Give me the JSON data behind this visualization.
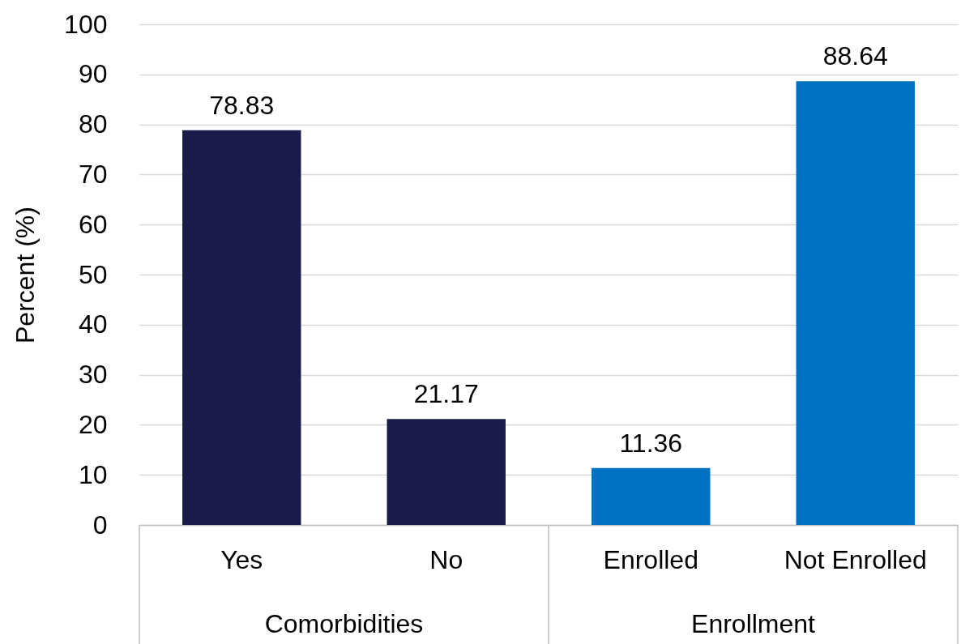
{
  "chart_data": {
    "type": "bar",
    "ylabel": "Percent (%)",
    "categories": [
      "Yes",
      "No",
      "Enrolled",
      "Not Enrolled"
    ],
    "values": [
      78.83,
      21.17,
      11.36,
      88.64
    ],
    "colors": [
      "#1b1b4b",
      "#1b1b4b",
      "#0070c0",
      "#0070c0"
    ],
    "annotations": [
      "Comorbidities",
      "Enrollment"
    ],
    "ylim": [
      0,
      100
    ],
    "yticks": [
      0,
      10,
      20,
      30,
      40,
      50,
      60,
      70,
      80,
      90,
      100
    ],
    "grid": "y",
    "data_labels": true
  }
}
